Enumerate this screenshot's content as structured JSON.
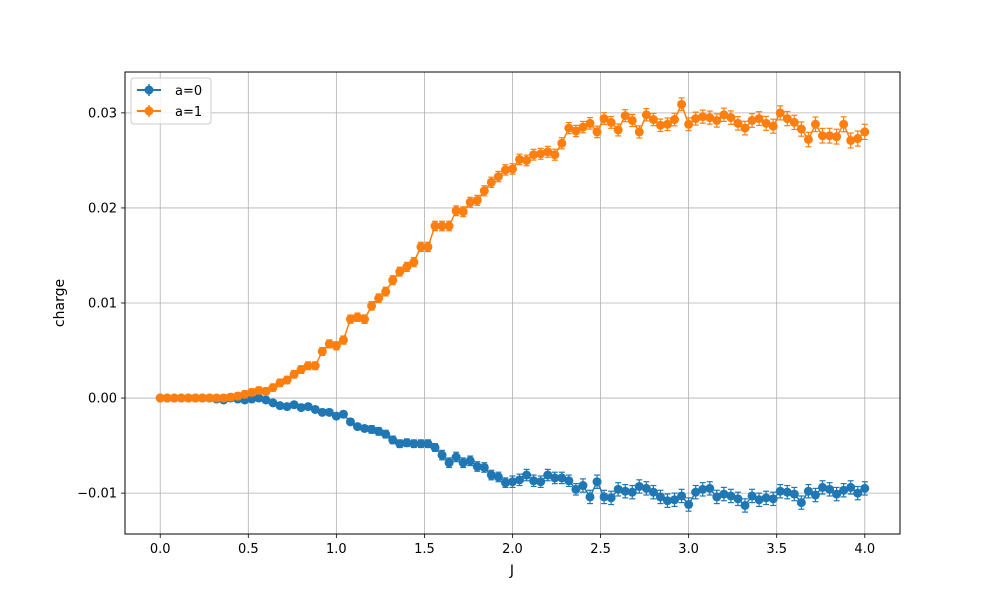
{
  "chart_data": {
    "type": "line",
    "title": "",
    "xlabel": "J",
    "ylabel": "charge",
    "xlim": [
      -0.2,
      4.2
    ],
    "ylim": [
      -0.0143,
      0.0343
    ],
    "x_ticks": [
      {
        "value": 0.0,
        "label": "0.0"
      },
      {
        "value": 0.5,
        "label": "0.5"
      },
      {
        "value": 1.0,
        "label": "1.0"
      },
      {
        "value": 1.5,
        "label": "1.5"
      },
      {
        "value": 2.0,
        "label": "2.0"
      },
      {
        "value": 2.5,
        "label": "2.5"
      },
      {
        "value": 3.0,
        "label": "3.0"
      },
      {
        "value": 3.5,
        "label": "3.5"
      },
      {
        "value": 4.0,
        "label": "4.0"
      }
    ],
    "y_ticks": [
      {
        "value": -0.01,
        "label": "−0.01"
      },
      {
        "value": 0.0,
        "label": "0.00"
      },
      {
        "value": 0.01,
        "label": "0.01"
      },
      {
        "value": 0.02,
        "label": "0.02"
      },
      {
        "value": 0.03,
        "label": "0.03"
      }
    ],
    "grid": true,
    "legend_position": "top-left",
    "x": [
      0.0,
      0.04,
      0.08,
      0.12,
      0.16,
      0.2,
      0.24,
      0.28,
      0.32,
      0.36,
      0.4,
      0.44,
      0.48,
      0.52,
      0.56,
      0.6,
      0.64,
      0.68,
      0.72,
      0.76,
      0.8,
      0.84,
      0.88,
      0.92,
      0.96,
      1.0,
      1.04,
      1.08,
      1.12,
      1.16,
      1.2,
      1.24,
      1.28,
      1.32,
      1.36,
      1.4,
      1.44,
      1.48,
      1.52,
      1.56,
      1.6,
      1.64,
      1.68,
      1.72,
      1.76,
      1.8,
      1.84,
      1.88,
      1.92,
      1.96,
      2.0,
      2.04,
      2.08,
      2.12,
      2.16,
      2.2,
      2.24,
      2.28,
      2.32,
      2.36,
      2.4,
      2.44,
      2.48,
      2.52,
      2.56,
      2.6,
      2.64,
      2.68,
      2.72,
      2.76,
      2.8,
      2.84,
      2.88,
      2.92,
      2.96,
      3.0,
      3.04,
      3.08,
      3.12,
      3.16,
      3.2,
      3.24,
      3.28,
      3.32,
      3.36,
      3.4,
      3.44,
      3.48,
      3.52,
      3.56,
      3.6,
      3.64,
      3.68,
      3.72,
      3.76,
      3.8,
      3.84,
      3.88,
      3.92,
      3.96,
      4.0
    ],
    "series": [
      {
        "name": "a=0",
        "color": "#1f77b4",
        "values": [
          0.0,
          0.0,
          0.0,
          0.0,
          0.0,
          0.0,
          0.0,
          0.0,
          -0.0001,
          -0.0002,
          0.0,
          -0.0001,
          -0.0002,
          -0.0001,
          0.0,
          -0.0002,
          -0.0005,
          -0.0008,
          -0.0009,
          -0.0007,
          -0.001,
          -0.0009,
          -0.0012,
          -0.0015,
          -0.0015,
          -0.0019,
          -0.0017,
          -0.0025,
          -0.003,
          -0.0032,
          -0.0033,
          -0.0035,
          -0.0038,
          -0.0044,
          -0.0048,
          -0.0047,
          -0.0048,
          -0.0048,
          -0.0048,
          -0.0052,
          -0.006,
          -0.0068,
          -0.0062,
          -0.0068,
          -0.0066,
          -0.0072,
          -0.0073,
          -0.0081,
          -0.0083,
          -0.0089,
          -0.0088,
          -0.0086,
          -0.0081,
          -0.0087,
          -0.0088,
          -0.0081,
          -0.0084,
          -0.0084,
          -0.0087,
          -0.0096,
          -0.0092,
          -0.0104,
          -0.0088,
          -0.0104,
          -0.0105,
          -0.0096,
          -0.0098,
          -0.0099,
          -0.0093,
          -0.0095,
          -0.0099,
          -0.0104,
          -0.0108,
          -0.0107,
          -0.0103,
          -0.0112,
          -0.0099,
          -0.0096,
          -0.0095,
          -0.0104,
          -0.0101,
          -0.0103,
          -0.0106,
          -0.0113,
          -0.0103,
          -0.0107,
          -0.0105,
          -0.0106,
          -0.0098,
          -0.0099,
          -0.0101,
          -0.011,
          -0.0098,
          -0.0102,
          -0.0094,
          -0.0096,
          -0.0101,
          -0.0097,
          -0.0094,
          -0.01,
          -0.0095
        ],
        "errors": [
          0.0002,
          0.0002,
          0.0002,
          0.0002,
          0.0002,
          0.0002,
          0.0002,
          0.0002,
          0.0002,
          0.0002,
          0.0002,
          0.0002,
          0.0002,
          0.0002,
          0.0002,
          0.0002,
          0.0002,
          0.0002,
          0.0002,
          0.0002,
          0.0003,
          0.0003,
          0.0003,
          0.0003,
          0.0003,
          0.0003,
          0.0003,
          0.0003,
          0.0003,
          0.0003,
          0.0004,
          0.0004,
          0.0004,
          0.0004,
          0.0004,
          0.0004,
          0.0004,
          0.0004,
          0.0004,
          0.0004,
          0.0005,
          0.0005,
          0.0005,
          0.0005,
          0.0005,
          0.0005,
          0.0005,
          0.0005,
          0.0005,
          0.0005,
          0.0006,
          0.0006,
          0.0006,
          0.0006,
          0.0006,
          0.0006,
          0.0006,
          0.0006,
          0.0006,
          0.0006,
          0.0007,
          0.0007,
          0.0007,
          0.0007,
          0.0007,
          0.0007,
          0.0007,
          0.0007,
          0.0007,
          0.0007,
          0.0007,
          0.0007,
          0.0007,
          0.0007,
          0.0007,
          0.0007,
          0.0007,
          0.0007,
          0.0007,
          0.0007,
          0.0007,
          0.0007,
          0.0007,
          0.0007,
          0.0007,
          0.0007,
          0.0007,
          0.0007,
          0.0007,
          0.0007,
          0.0007,
          0.0007,
          0.0007,
          0.0007,
          0.0007,
          0.0007,
          0.0007,
          0.0007,
          0.0007,
          0.0007,
          0.0007
        ]
      },
      {
        "name": "a=1",
        "color": "#ff7f0e",
        "values": [
          0.0,
          0.0,
          0.0,
          0.0,
          0.0,
          0.0,
          0.0,
          0.0,
          0.0,
          0.0,
          0.0001,
          0.0002,
          0.0004,
          0.0006,
          0.0008,
          0.0007,
          0.0011,
          0.0016,
          0.0019,
          0.0025,
          0.003,
          0.0034,
          0.0034,
          0.0049,
          0.0057,
          0.0055,
          0.0061,
          0.0083,
          0.0085,
          0.0083,
          0.0097,
          0.0105,
          0.0112,
          0.0124,
          0.0133,
          0.0138,
          0.0143,
          0.0159,
          0.0159,
          0.0181,
          0.0181,
          0.0181,
          0.0197,
          0.0196,
          0.0206,
          0.0208,
          0.0218,
          0.0227,
          0.0233,
          0.024,
          0.0241,
          0.0251,
          0.025,
          0.0256,
          0.0257,
          0.0259,
          0.0256,
          0.0268,
          0.0284,
          0.0281,
          0.0285,
          0.0289,
          0.028,
          0.0294,
          0.029,
          0.0282,
          0.0297,
          0.0292,
          0.028,
          0.0298,
          0.0293,
          0.0287,
          0.0288,
          0.0293,
          0.0309,
          0.0288,
          0.0294,
          0.0296,
          0.0295,
          0.0292,
          0.0298,
          0.0295,
          0.0289,
          0.0284,
          0.0292,
          0.0294,
          0.0289,
          0.0286,
          0.03,
          0.0294,
          0.029,
          0.0283,
          0.0272,
          0.0288,
          0.0276,
          0.0276,
          0.0275,
          0.0288,
          0.0271,
          0.0273,
          0.028
        ]
      }
    ]
  }
}
